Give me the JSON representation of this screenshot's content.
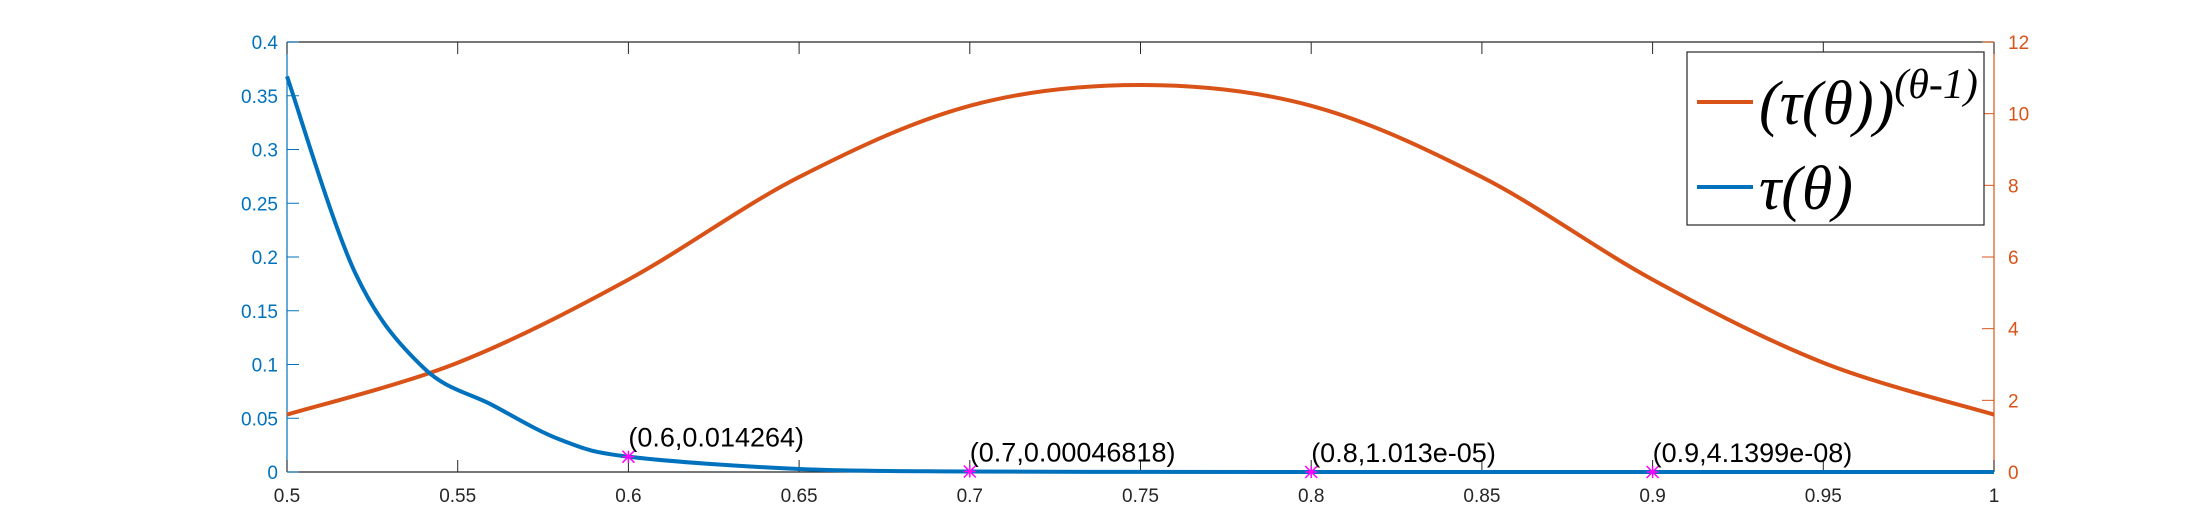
{
  "chart_data": {
    "type": "line",
    "xlim": [
      0.5,
      1
    ],
    "xticks": [
      "0.5",
      "0.55",
      "0.6",
      "0.65",
      "0.7",
      "0.75",
      "0.8",
      "0.85",
      "0.9",
      "0.95",
      "1"
    ],
    "ylim_left": [
      0,
      0.4
    ],
    "yticks_left": [
      "0",
      "0.05",
      "0.1",
      "0.15",
      "0.2",
      "0.25",
      "0.3",
      "0.35",
      "0.4"
    ],
    "ylim_right": [
      0,
      12
    ],
    "yticks_right": [
      "0",
      "2",
      "4",
      "6",
      "8",
      "10",
      "12"
    ],
    "grid": false,
    "legend_position": "top-right",
    "colors": {
      "left_series": "#0072BD",
      "right_series": "#D95319",
      "markers": "#FF00FF"
    },
    "series": [
      {
        "axis": "right",
        "x": [
          0.5,
          0.55,
          0.6,
          0.65,
          0.7,
          0.75,
          0.8,
          0.85,
          0.9,
          0.95,
          1.0
        ],
        "values": [
          1.6,
          3.05,
          5.37,
          8.23,
          10.22,
          10.8,
          10.22,
          8.23,
          5.37,
          3.05,
          1.6
        ]
      },
      {
        "axis": "left",
        "x": [
          0.5,
          0.52,
          0.54,
          0.56,
          0.58,
          0.6,
          0.65,
          0.7,
          0.75,
          0.8,
          0.85,
          0.9,
          0.95,
          1.0
        ],
        "values": [
          0.368,
          0.185,
          0.0969,
          0.0625,
          0.0301,
          0.014264,
          0.0028,
          0.00046818,
          7e-05,
          1.013e-05,
          1.2e-06,
          4.1399e-08,
          0.0,
          0.0
        ]
      }
    ],
    "legend": [
      {
        "series": 0,
        "base": "(τ(θ))",
        "exp": "(θ-1)"
      },
      {
        "series": 1,
        "base": "τ(θ)",
        "exp": ""
      }
    ],
    "annotations": [
      {
        "x": 0.6,
        "y": 0.014264,
        "label": "(0.6,0.014264)"
      },
      {
        "x": 0.7,
        "y": 0.00046818,
        "label": "(0.7,0.00046818)"
      },
      {
        "x": 0.8,
        "y": 1.013e-05,
        "label": "(0.8,1.013e-05)"
      },
      {
        "x": 0.9,
        "y": 4.1399e-08,
        "label": "(0.9,4.1399e-08)"
      }
    ]
  }
}
